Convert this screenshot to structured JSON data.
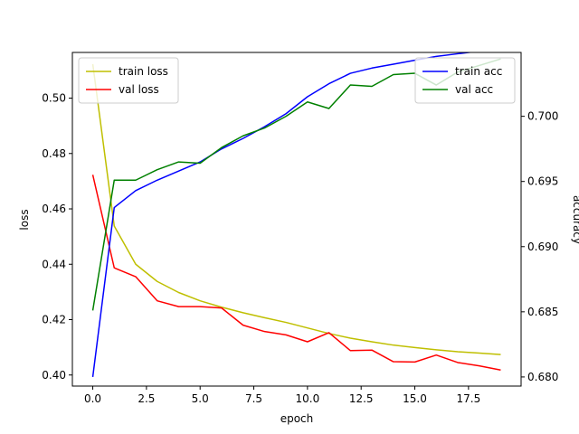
{
  "chart_data": {
    "type": "line",
    "title": "",
    "xlabel": "epoch",
    "ylabel_left": "loss",
    "ylabel_right": "accuracy",
    "x": [
      0,
      1,
      2,
      3,
      4,
      5,
      6,
      7,
      8,
      9,
      10,
      11,
      12,
      13,
      14,
      15,
      16,
      17,
      18,
      19
    ],
    "xlim": [
      -0.95,
      19.95
    ],
    "xticks": [
      0,
      2.5,
      5,
      7.5,
      10,
      12.5,
      15,
      17.5
    ],
    "xtick_labels": [
      "0.0",
      "2.5",
      "5.0",
      "7.5",
      "10.0",
      "12.5",
      "15.0",
      "17.5"
    ],
    "ylim_left": [
      0.396,
      0.5165
    ],
    "yticks_left": [
      0.4,
      0.42,
      0.44,
      0.46,
      0.48,
      0.5
    ],
    "ytick_labels_left": [
      "0.40",
      "0.42",
      "0.44",
      "0.46",
      "0.48",
      "0.50"
    ],
    "ylim_right": [
      0.6793,
      0.7049
    ],
    "yticks_right": [
      0.68,
      0.685,
      0.69,
      0.695,
      0.7
    ],
    "ytick_labels_right": [
      "0.680",
      "0.685",
      "0.690",
      "0.695",
      "0.700"
    ],
    "grid": false,
    "series": [
      {
        "name": "train loss",
        "axis": "left",
        "color": "#bfbf00",
        "values": [
          0.5123,
          0.4538,
          0.44,
          0.4338,
          0.4298,
          0.4268,
          0.4245,
          0.4225,
          0.4207,
          0.419,
          0.417,
          0.415,
          0.4133,
          0.412,
          0.4108,
          0.4099,
          0.4091,
          0.4084,
          0.4079,
          0.4074
        ]
      },
      {
        "name": "val loss",
        "axis": "left",
        "color": "#ff0000",
        "values": [
          0.4723,
          0.4387,
          0.4355,
          0.4268,
          0.4247,
          0.4247,
          0.4242,
          0.418,
          0.4157,
          0.4145,
          0.412,
          0.4153,
          0.4088,
          0.409,
          0.4048,
          0.4047,
          0.4072,
          0.4045,
          0.4033,
          0.4018
        ]
      },
      {
        "name": "train acc",
        "axis": "right",
        "color": "#0000ff",
        "values": [
          0.68,
          0.693,
          0.6943,
          0.6951,
          0.6958,
          0.6965,
          0.6975,
          0.6983,
          0.6992,
          0.7002,
          0.7015,
          0.7025,
          0.7033,
          0.7037,
          0.704,
          0.7043,
          0.7046,
          0.7048,
          0.705,
          0.7051
        ]
      },
      {
        "name": "val acc",
        "axis": "right",
        "color": "#008000",
        "values": [
          0.6851,
          0.6951,
          0.6951,
          0.6959,
          0.6965,
          0.6964,
          0.6976,
          0.6985,
          0.6991,
          0.7,
          0.7011,
          0.7006,
          0.7024,
          0.7023,
          0.7032,
          0.7033,
          0.7024,
          0.7034,
          0.7039,
          0.7044
        ]
      }
    ],
    "legends": [
      {
        "placement": "upper-left",
        "entries": [
          "train loss",
          "val loss"
        ]
      },
      {
        "placement": "upper-right",
        "entries": [
          "train acc",
          "val acc"
        ]
      }
    ]
  }
}
